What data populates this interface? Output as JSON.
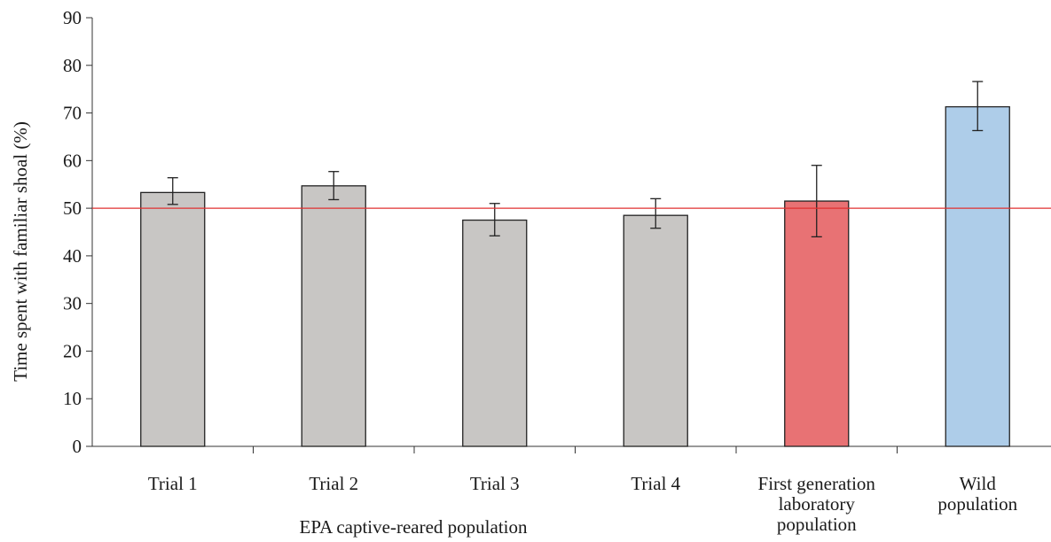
{
  "chart_data": {
    "type": "bar",
    "ylabel": "Time spent with familiar shoal (%)",
    "xlabel": "",
    "ylim": [
      0,
      90
    ],
    "yticks": [
      0,
      10,
      20,
      30,
      40,
      50,
      60,
      70,
      80,
      90
    ],
    "categories": [
      [
        "Trial 1"
      ],
      [
        "Trial 2"
      ],
      [
        "Trial 3"
      ],
      [
        "Trial 4"
      ],
      [
        "First generation",
        "laboratory",
        "population"
      ],
      [
        "Wild",
        "population"
      ]
    ],
    "values": [
      53.3,
      54.7,
      47.5,
      48.5,
      51.5,
      71.3
    ],
    "error_low": [
      50.8,
      51.8,
      44.2,
      45.8,
      44.0,
      66.3
    ],
    "error_high": [
      56.4,
      57.7,
      51.0,
      52.0,
      59.0,
      76.6
    ],
    "bar_colors": [
      "#c8c6c4",
      "#c8c6c4",
      "#c8c6c4",
      "#c8c6c4",
      "#e87274",
      "#aecde9"
    ],
    "reference_line": {
      "y": 50,
      "color": "#e03030"
    },
    "group_label": "EPA captive-reared population",
    "grid": false,
    "legend": "none"
  }
}
